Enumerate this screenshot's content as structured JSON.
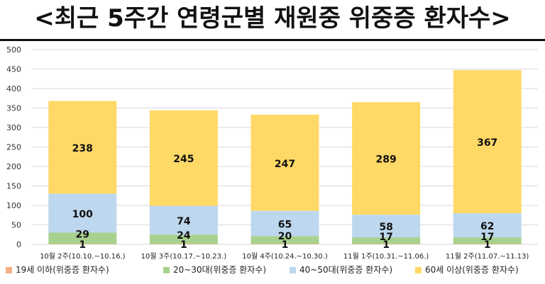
{
  "chart_data": {
    "type": "bar",
    "stacked": true,
    "title": "<최근 5주간 연령군별 재원중 위중증 환자수>",
    "categories": [
      "10월 2주(10.10.~10.16.)",
      "10월 3주(10.17.~10.23.)",
      "10월 4주(10.24.~10.30.)",
      "11월 1주(10.31.~11.06.)",
      "11월 2주(11.07.~11.13)"
    ],
    "series": [
      {
        "name": "19세 이하(위중증 환자수)",
        "color": "#f4b183",
        "values": [
          1,
          1,
          1,
          1,
          1
        ]
      },
      {
        "name": "20~30대(위중증 환자수)",
        "color": "#a9d18e",
        "values": [
          29,
          24,
          20,
          17,
          17
        ]
      },
      {
        "name": "40~50대(위중증 환자수)",
        "color": "#bdd7ee",
        "values": [
          100,
          74,
          65,
          58,
          62
        ]
      },
      {
        "name": "60세 이상(위중증 환자수)",
        "color": "#ffd966",
        "values": [
          238,
          245,
          247,
          289,
          367
        ]
      }
    ],
    "ylim": [
      0,
      500
    ],
    "yticks": [
      0,
      50,
      100,
      150,
      200,
      250,
      300,
      350,
      400,
      450,
      500
    ],
    "grid": true,
    "legend": "bottom"
  }
}
